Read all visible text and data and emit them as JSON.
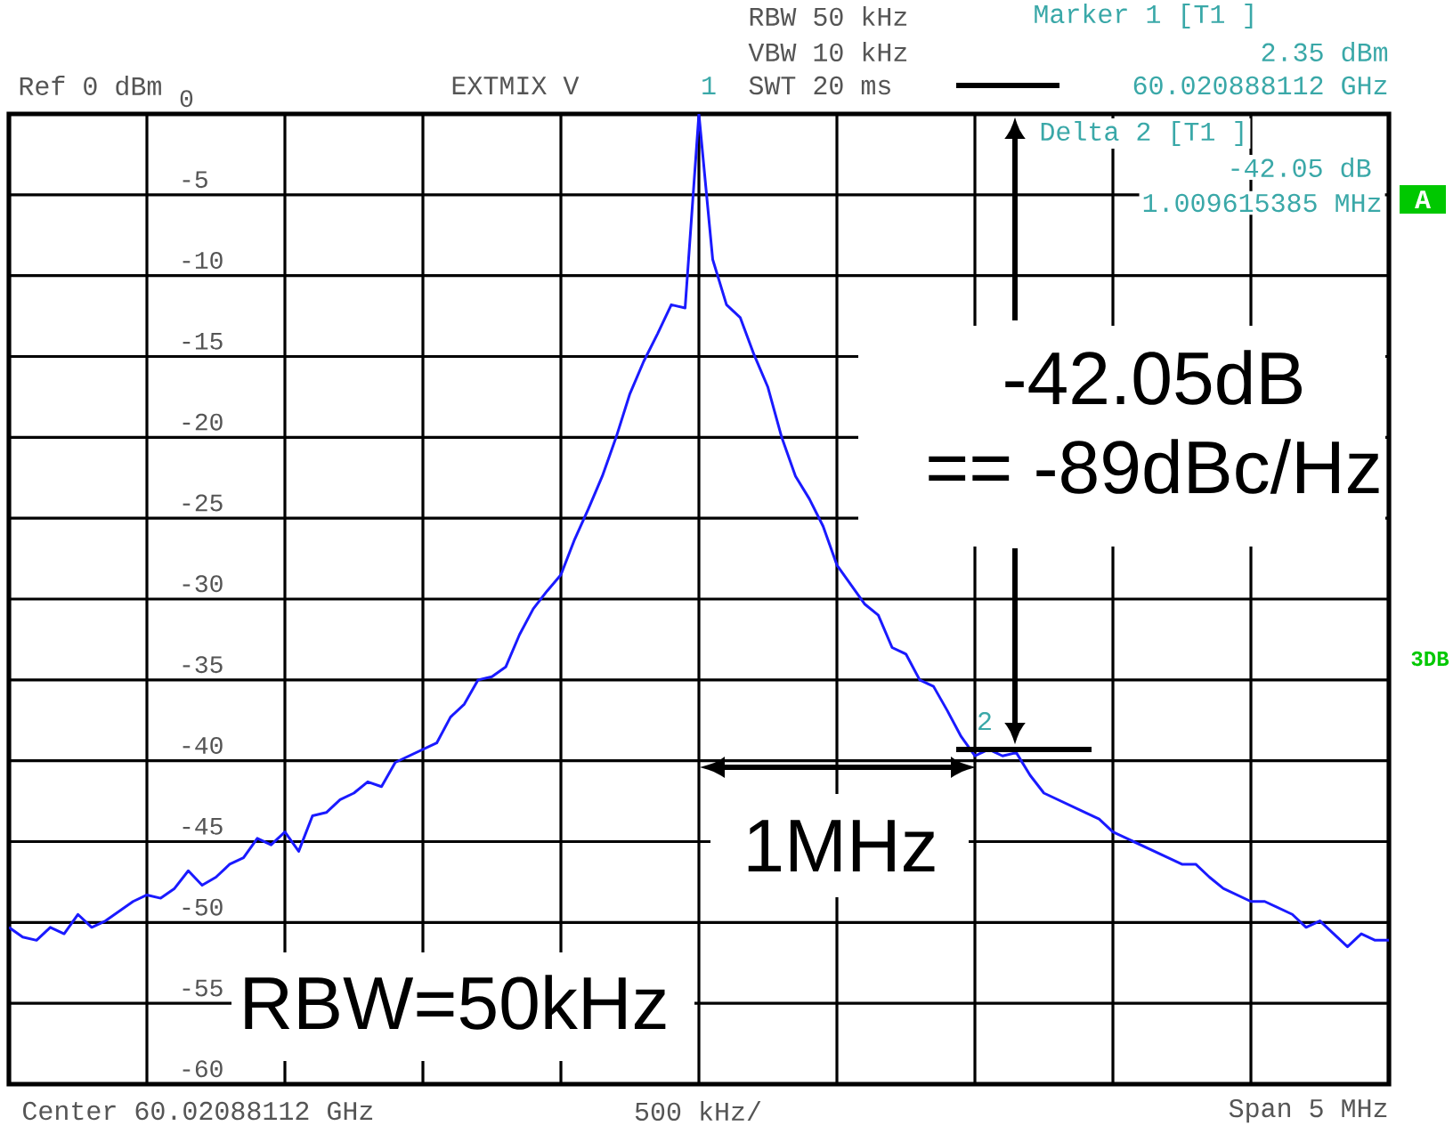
{
  "chart_data": {
    "type": "line",
    "categories": [
      null,
      null,
      null,
      null,
      null,
      null,
      null,
      null,
      null,
      null,
      null,
      null,
      null,
      null,
      null,
      null,
      null,
      null,
      null,
      null,
      null,
      null,
      null,
      null,
      null,
      null,
      null,
      null,
      null,
      null,
      null,
      null,
      null,
      null,
      null,
      null,
      null,
      null,
      null,
      null,
      null,
      null,
      null,
      null,
      null,
      null,
      null,
      null,
      null,
      null,
      null,
      null,
      null,
      null,
      null,
      null,
      null,
      null,
      null,
      null,
      null,
      null,
      null,
      null,
      null,
      null,
      null,
      null,
      null,
      null,
      null,
      null,
      null,
      null,
      null,
      null,
      null,
      null,
      null,
      null,
      null,
      null,
      null,
      null,
      null,
      null,
      null,
      null,
      null,
      null,
      null,
      null,
      null,
      null,
      null,
      null,
      null,
      null,
      null,
      null,
      null
    ],
    "series": [
      {
        "color": "#1a1aff",
        "values": [
          -50.3,
          -50.9,
          -51.1,
          -50.3,
          -50.7,
          -49.5,
          -50.3,
          -49.9,
          -49.3,
          -48.7,
          -48.3,
          -48.5,
          -47.9,
          -46.8,
          -47.7,
          -47.2,
          -46.4,
          -46.0,
          -44.8,
          -45.2,
          -44.4,
          -45.6,
          -43.4,
          -43.2,
          -42.4,
          -42.0,
          -41.3,
          -41.6,
          -40.1,
          -39.7,
          -39.3,
          -38.9,
          -37.3,
          -36.5,
          -35.0,
          -34.8,
          -34.2,
          -32.2,
          -30.6,
          -29.5,
          -28.5,
          -26.3,
          -24.4,
          -22.4,
          -20.0,
          -17.3,
          -15.3,
          -13.6,
          -11.8,
          -12.0,
          0,
          -9.0,
          -11.8,
          -12.6,
          -14.9,
          -16.9,
          -20.0,
          -22.4,
          -23.8,
          -25.5,
          -27.9,
          -29.1,
          -30.3,
          -31.0,
          -33.0,
          -33.4,
          -35.0,
          -35.4,
          -36.9,
          -38.5,
          -39.7,
          -39.3,
          -39.7,
          -39.5,
          -40.9,
          -42.0,
          -42.4,
          -42.8,
          -43.2,
          -43.6,
          -44.4,
          -44.8,
          -45.2,
          -45.6,
          -46.0,
          -46.4,
          -46.4,
          -47.2,
          -47.9,
          -48.3,
          -48.7,
          -48.7,
          -49.1,
          -49.5,
          -50.3,
          -49.9,
          -50.7,
          -51.5,
          -50.7,
          -51.1,
          -51.1
        ]
      }
    ],
    "ylim": [
      -60,
      0
    ],
    "yticks": [
      -60,
      -55,
      -50,
      -45,
      -40,
      -35,
      -30,
      -25,
      -20,
      -15,
      -10,
      -5,
      0
    ],
    "grid": true,
    "tick_labels": "y",
    "marker": "none",
    "line_style": "solid",
    "annotations": [
      "Ref 0 dBm",
      "EXTMIX V",
      "RBW 50 kHz",
      "VBW 10 kHz",
      "SWT 20 ms",
      "Marker 1 [T1 ]",
      "2.35 dBm",
      "60.020888112 GHz",
      "Delta 2 [T1 ]",
      "-42.05 dB",
      "1.009615385 MHz",
      "A",
      "3DB",
      "-42.05dB",
      "== -89dBc/Hz",
      "1MHz",
      "RBW=50kHz",
      "Center 60.02088112 GHz",
      "500 kHz/",
      "Span 5 MHz",
      "1",
      "2"
    ]
  }
}
